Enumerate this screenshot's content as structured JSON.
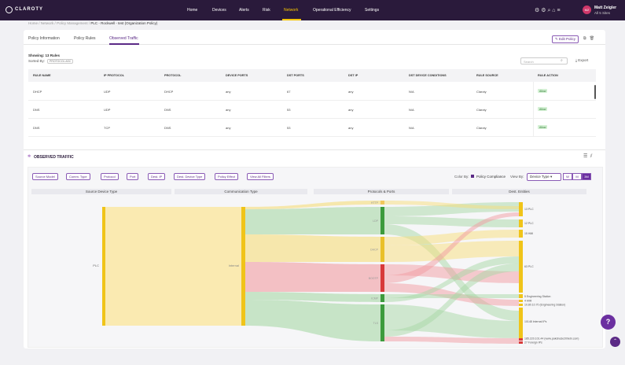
{
  "nav": {
    "logo": "CLAROTY",
    "items": [
      "Home",
      "Devices",
      "Alerts",
      "Risk",
      "Network",
      "Operational Efficiency",
      "Settings"
    ],
    "active_index": 4,
    "avatar": "MZ",
    "user": "Matt Zeigler",
    "site": "All 5 Sites"
  },
  "breadcrumb": [
    "Home",
    "Network",
    "Policy Management",
    "PLC - Rockwell - test (Organization Policy)"
  ],
  "tabs": [
    "Policy Information",
    "Policy Rules",
    "Observed Traffic"
  ],
  "active_tab": 2,
  "edit_button": "Edit Policy",
  "showing": "Showing: 13 Rules",
  "sorted_by_label": "Sorted By:",
  "sorted_by": "PROTOCOL ASC",
  "search_placeholder": "Search",
  "export": "Export",
  "table": {
    "columns": [
      "RULE NAME",
      "IP PROTOCOL",
      "PROTOCOL",
      "DEVICE PORTS",
      "DST PORTS",
      "DST IP",
      "DST DEVICE CONDITIONS",
      "RULE SOURCE",
      "RULE ACTION"
    ],
    "rows": [
      [
        "DHCP",
        "UDP",
        "DHCP",
        "any",
        "67",
        "any",
        "N/A",
        "Claroty",
        "Allow"
      ],
      [
        "DNS",
        "UDP",
        "DNS",
        "any",
        "53",
        "any",
        "N/A",
        "Claroty",
        "Allow"
      ],
      [
        "DNS",
        "TCP",
        "DNS",
        "any",
        "53",
        "any",
        "N/A",
        "Claroty",
        "Allow"
      ]
    ]
  },
  "observed": {
    "title": "OBSERVED TRAFFIC",
    "filters": [
      "Source Model",
      "Comm. Type",
      "Protocol",
      "Port",
      "Dest. IP",
      "Dest. Device Type",
      "Policy Effect",
      "View All Filters"
    ],
    "color_by_label": "Color By:",
    "color_by": "Policy Compliance",
    "view_by_label": "View By:",
    "view_by": "Device Type",
    "ranges": [
      "W",
      "M",
      "3M"
    ],
    "active_range": 2,
    "columns": [
      "Source Device Type",
      "Communication Type",
      "Protocols & Ports",
      "Dest. Entities"
    ],
    "source_nodes": [
      "PLC"
    ],
    "comm_nodes": [
      "Internal"
    ],
    "protocol_nodes": [
      "HTTP",
      "LDP",
      "DHCP",
      "BOOTP",
      "ICMP",
      "TLS"
    ],
    "dest_nodes": [
      "13 PLC",
      "12 PLC",
      "15 HMI",
      "63 PLC",
      "5 Engineering Station",
      "4 HMI",
      "10.80.10.70 (Engineering Station)",
      "10148 Internal IPs",
      "185.220.101.44 (www.pakdna3e209ebi.com)",
      "27 Foreign IPs"
    ]
  },
  "help": "?"
}
